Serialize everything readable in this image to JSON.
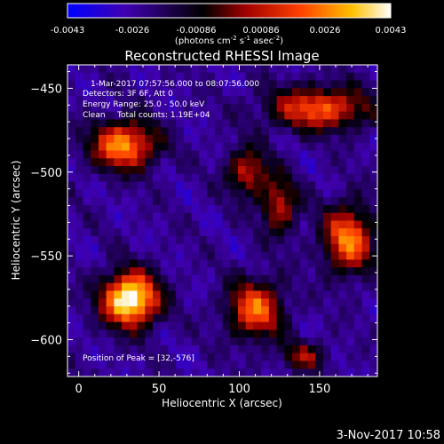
{
  "colorbar": {
    "ticks": [
      "-0.0043",
      "-0.0026",
      "-0.00086",
      "0.00086",
      "0.0026",
      "0.0043"
    ],
    "units_main": "(photons cm",
    "units_exp1": "-2",
    "units_s": " s",
    "units_exp2": "-1",
    "units_asec": " asec",
    "units_exp3": "-2",
    "units_end": ")"
  },
  "chart_data": {
    "type": "heatmap",
    "title": "Reconstructed RHESSI Image",
    "xlabel": "Heliocentric X (arcsec)",
    "ylabel": "Heliocentric Y (arcsec)",
    "xlim": [
      -7,
      186
    ],
    "ylim": [
      -622,
      -436
    ],
    "xticks": [
      {
        "value": 0,
        "label": "0"
      },
      {
        "value": 50,
        "label": "50"
      },
      {
        "value": 100,
        "label": "100"
      },
      {
        "value": 150,
        "label": "150"
      }
    ],
    "yticks": [
      {
        "value": -450,
        "label": "−450"
      },
      {
        "value": -500,
        "label": "−500"
      },
      {
        "value": -550,
        "label": "−550"
      },
      {
        "value": -600,
        "label": "−600"
      }
    ],
    "colorscale": {
      "min": -0.0043,
      "max": 0.0043,
      "colors": [
        "#0000ff",
        "#4000b0",
        "#000000",
        "#a00000",
        "#ff4000",
        "#ffc000",
        "#ffffff"
      ]
    },
    "sources": [
      {
        "x": 32,
        "y": -576,
        "sx": 12,
        "sy": 11,
        "amp": 1.0
      },
      {
        "x": 28,
        "y": -484,
        "sx": 14,
        "sy": 10,
        "amp": 0.72
      },
      {
        "x": 110,
        "y": -582,
        "sx": 12,
        "sy": 12,
        "amp": 0.62
      },
      {
        "x": 168,
        "y": -540,
        "sx": 11,
        "sy": 14,
        "amp": 0.66
      },
      {
        "x": 150,
        "y": -462,
        "sx": 22,
        "sy": 9,
        "amp": 0.6
      },
      {
        "x": 105,
        "y": -500,
        "sx": 9,
        "sy": 10,
        "amp": 0.45
      },
      {
        "x": 125,
        "y": -520,
        "sx": 8,
        "sy": 12,
        "amp": 0.45
      },
      {
        "x": 140,
        "y": -610,
        "sx": 10,
        "sy": 6,
        "amp": 0.35
      }
    ],
    "annotations": {
      "time": "1-Mar-2017 07:57:56.000 to 08:07:56.000",
      "detectors": "Detectors: 3F 6F, Att 0",
      "energy": "Energy Range: 25.0 - 50.0 keV",
      "method": "Clean",
      "counts": "Total counts: 1.19E+04",
      "peak": "Position of Peak = [32,-576]"
    }
  },
  "footer": {
    "timestamp": "3-Nov-2017 10:58"
  }
}
